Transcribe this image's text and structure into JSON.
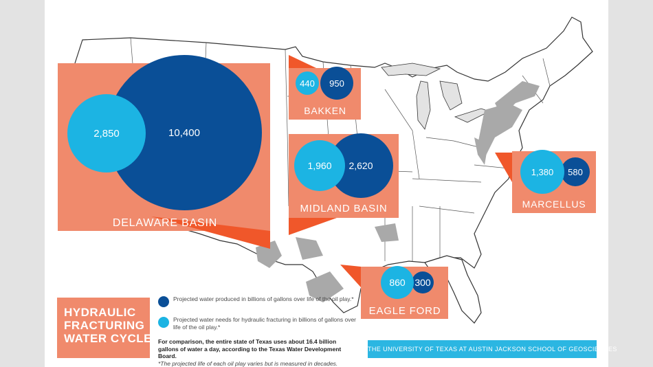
{
  "title": {
    "lines": [
      "HYDRAULIC",
      "FRACTURING",
      "WATER CYCLE"
    ]
  },
  "legend": {
    "produced": "Projected water produced in billions of gallons over life of the oil play.*",
    "needs": "Projected water needs for hydraulic fracturing in billions of gallons over life of the oil play.*"
  },
  "note": {
    "main": "For comparison, the entire state of Texas uses about 16.4 billion gallons of water a day, according to the Texas Water Development Board.",
    "footnote": "*The projected life of each oil play varies but is measured in decades."
  },
  "credit": "THE UNIVERSITY OF TEXAS AT AUSTIN JACKSON SCHOOL OF GEOSCIENCES",
  "colors": {
    "produced": "#0a4f97",
    "needs": "#1cb4e3",
    "box": "#f08a6c",
    "pointer": "#f0572a",
    "land": "#ffffff",
    "shale": "#a9a9a9"
  },
  "plays": [
    {
      "name": "DELAWARE BASIN",
      "needs": "2,850",
      "needs_value": 2850,
      "produced": "10,400",
      "produced_value": 10400
    },
    {
      "name": "BAKKEN",
      "needs": "440",
      "needs_value": 440,
      "produced": "950",
      "produced_value": 950
    },
    {
      "name": "MIDLAND BASIN",
      "needs": "1,960",
      "needs_value": 1960,
      "produced": "2,620",
      "produced_value": 2620
    },
    {
      "name": "MARCELLUS",
      "needs": "1,380",
      "needs_value": 1380,
      "produced": "580",
      "produced_value": 580
    },
    {
      "name": "EAGLE FORD",
      "needs": "860",
      "needs_value": 860,
      "produced": "300",
      "produced_value": 300
    }
  ]
}
